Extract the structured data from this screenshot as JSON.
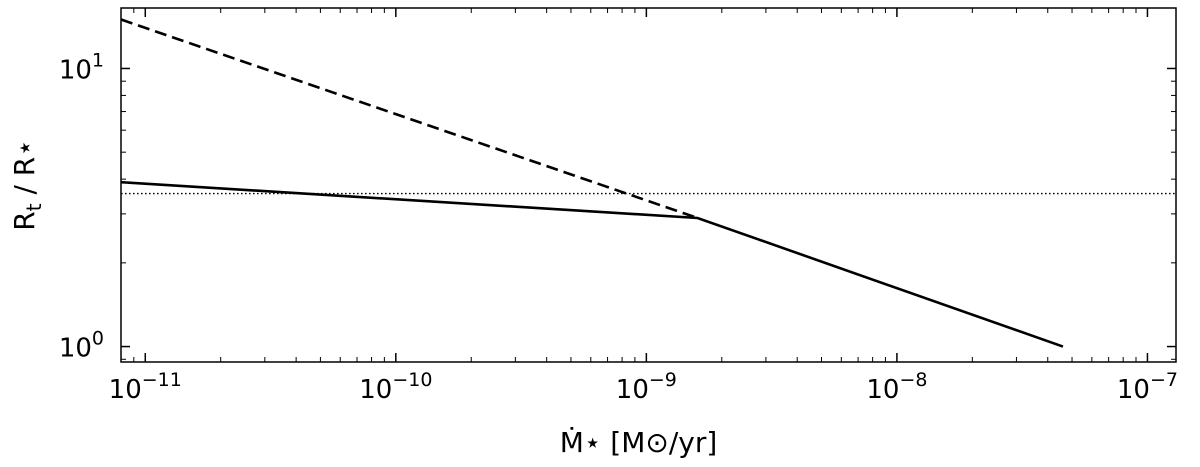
{
  "chart_data": {
    "type": "line",
    "title": "",
    "xlabel": "Ṁ⋆ [M⊙/yr]",
    "ylabel": "R_t / R⋆",
    "xscale": "log",
    "yscale": "log",
    "xlim": [
      8e-12,
      1.3e-07
    ],
    "ylim": [
      0.88,
      16.5
    ],
    "x_tick_labels": [
      {
        "value": 1e-11,
        "base": "10",
        "exp": "−11"
      },
      {
        "value": 1e-10,
        "base": "10",
        "exp": "−10"
      },
      {
        "value": 1e-09,
        "base": "10",
        "exp": "−9"
      },
      {
        "value": 1e-08,
        "base": "10",
        "exp": "−8"
      },
      {
        "value": 1e-07,
        "base": "10",
        "exp": "−7"
      }
    ],
    "y_tick_labels": [
      {
        "value": 1,
        "base": "10",
        "exp": "0"
      },
      {
        "value": 10,
        "base": "10",
        "exp": "1"
      }
    ],
    "grid": false,
    "ticks_direction": "in",
    "series": [
      {
        "style": "dashed",
        "color": "#000000",
        "x": [
          8e-12,
          1.6e-09
        ],
        "y": [
          15.0,
          2.9
        ]
      },
      {
        "style": "solid",
        "color": "#000000",
        "x": [
          8e-12,
          1.6e-09,
          4.6e-08
        ],
        "y": [
          3.9,
          2.9,
          1.0
        ]
      },
      {
        "style": "dotted",
        "color": "#000000",
        "x": [
          8e-12,
          1.3e-07
        ],
        "y": [
          3.55,
          3.55
        ]
      }
    ]
  }
}
